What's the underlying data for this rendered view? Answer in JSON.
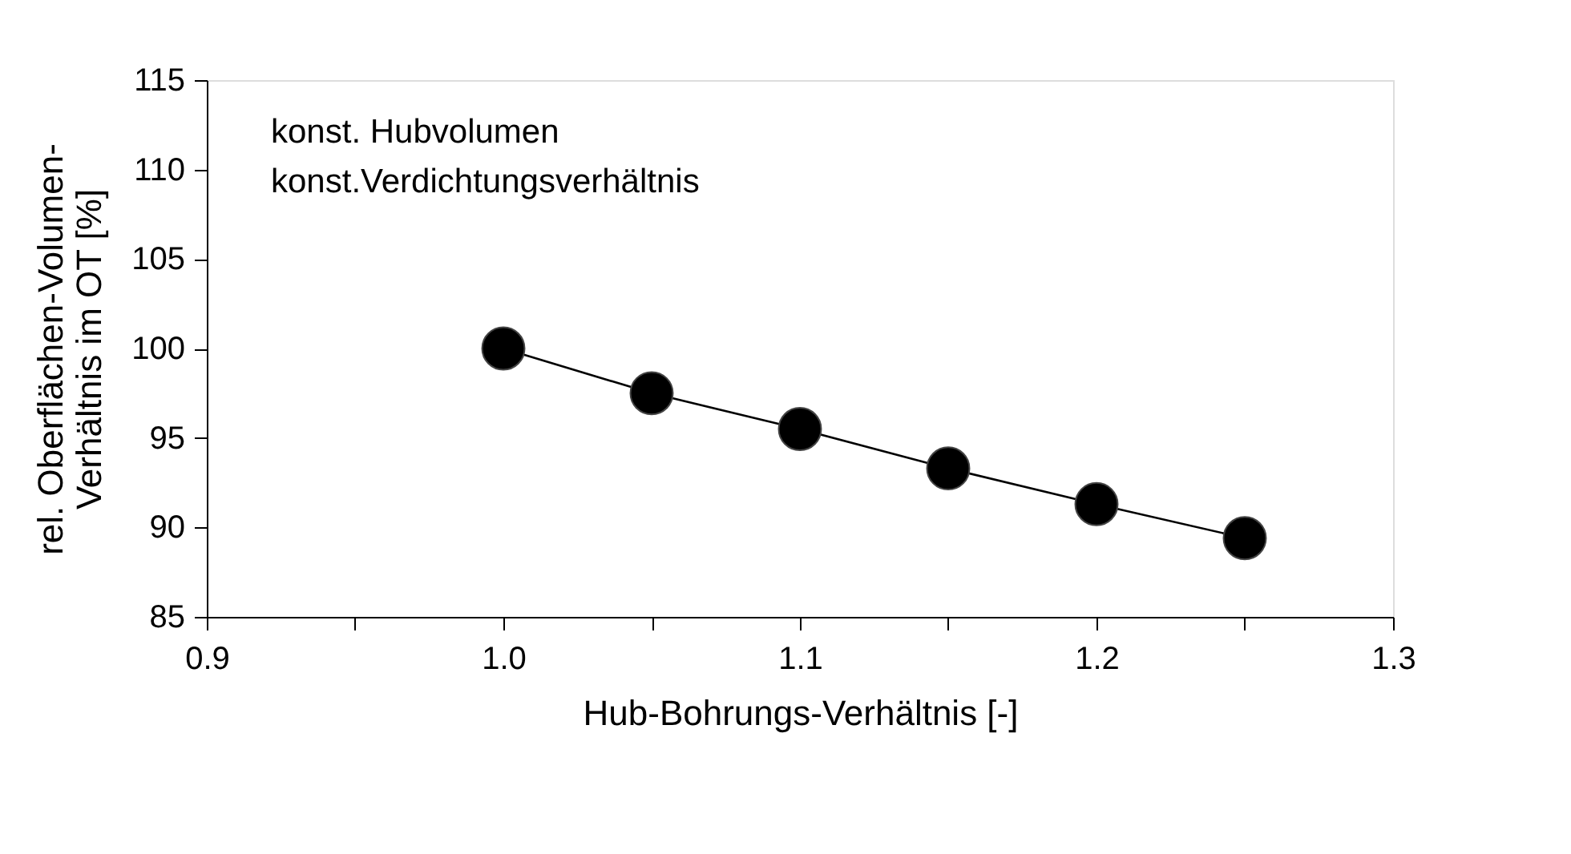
{
  "chart_data": {
    "type": "line",
    "xlabel": "Hub-Bohrungs-Verhältnis  [-]",
    "ylabel": "rel. Oberflächen-Volumen-\nVerhältnis im OT  [%]",
    "annotations": [
      "konst. Hubvolumen",
      "konst.Verdichtungsverhältnis"
    ],
    "x": [
      1.0,
      1.05,
      1.1,
      1.15,
      1.2,
      1.25
    ],
    "series": [
      {
        "color": "#000000",
        "values": [
          100,
          97.5,
          95.5,
          93.3,
          91.3,
          89.4
        ]
      }
    ],
    "marker": "circle",
    "line_style": "solid",
    "grid": false,
    "xlim": [
      0.9,
      1.3
    ],
    "xticks": [
      {
        "value": 0.9,
        "label": "0.9"
      },
      {
        "value": 0.95,
        "label": null
      },
      {
        "value": 1.0,
        "label": "1.0"
      },
      {
        "value": 1.05,
        "label": null
      },
      {
        "value": 1.1,
        "label": "1.1"
      },
      {
        "value": 1.15,
        "label": null
      },
      {
        "value": 1.2,
        "label": "1.2"
      },
      {
        "value": 1.25,
        "label": null
      },
      {
        "value": 1.3,
        "label": "1.3"
      }
    ],
    "ylim": [
      85,
      115
    ],
    "yticks": [
      85,
      90,
      95,
      100,
      105,
      110,
      115
    ]
  }
}
